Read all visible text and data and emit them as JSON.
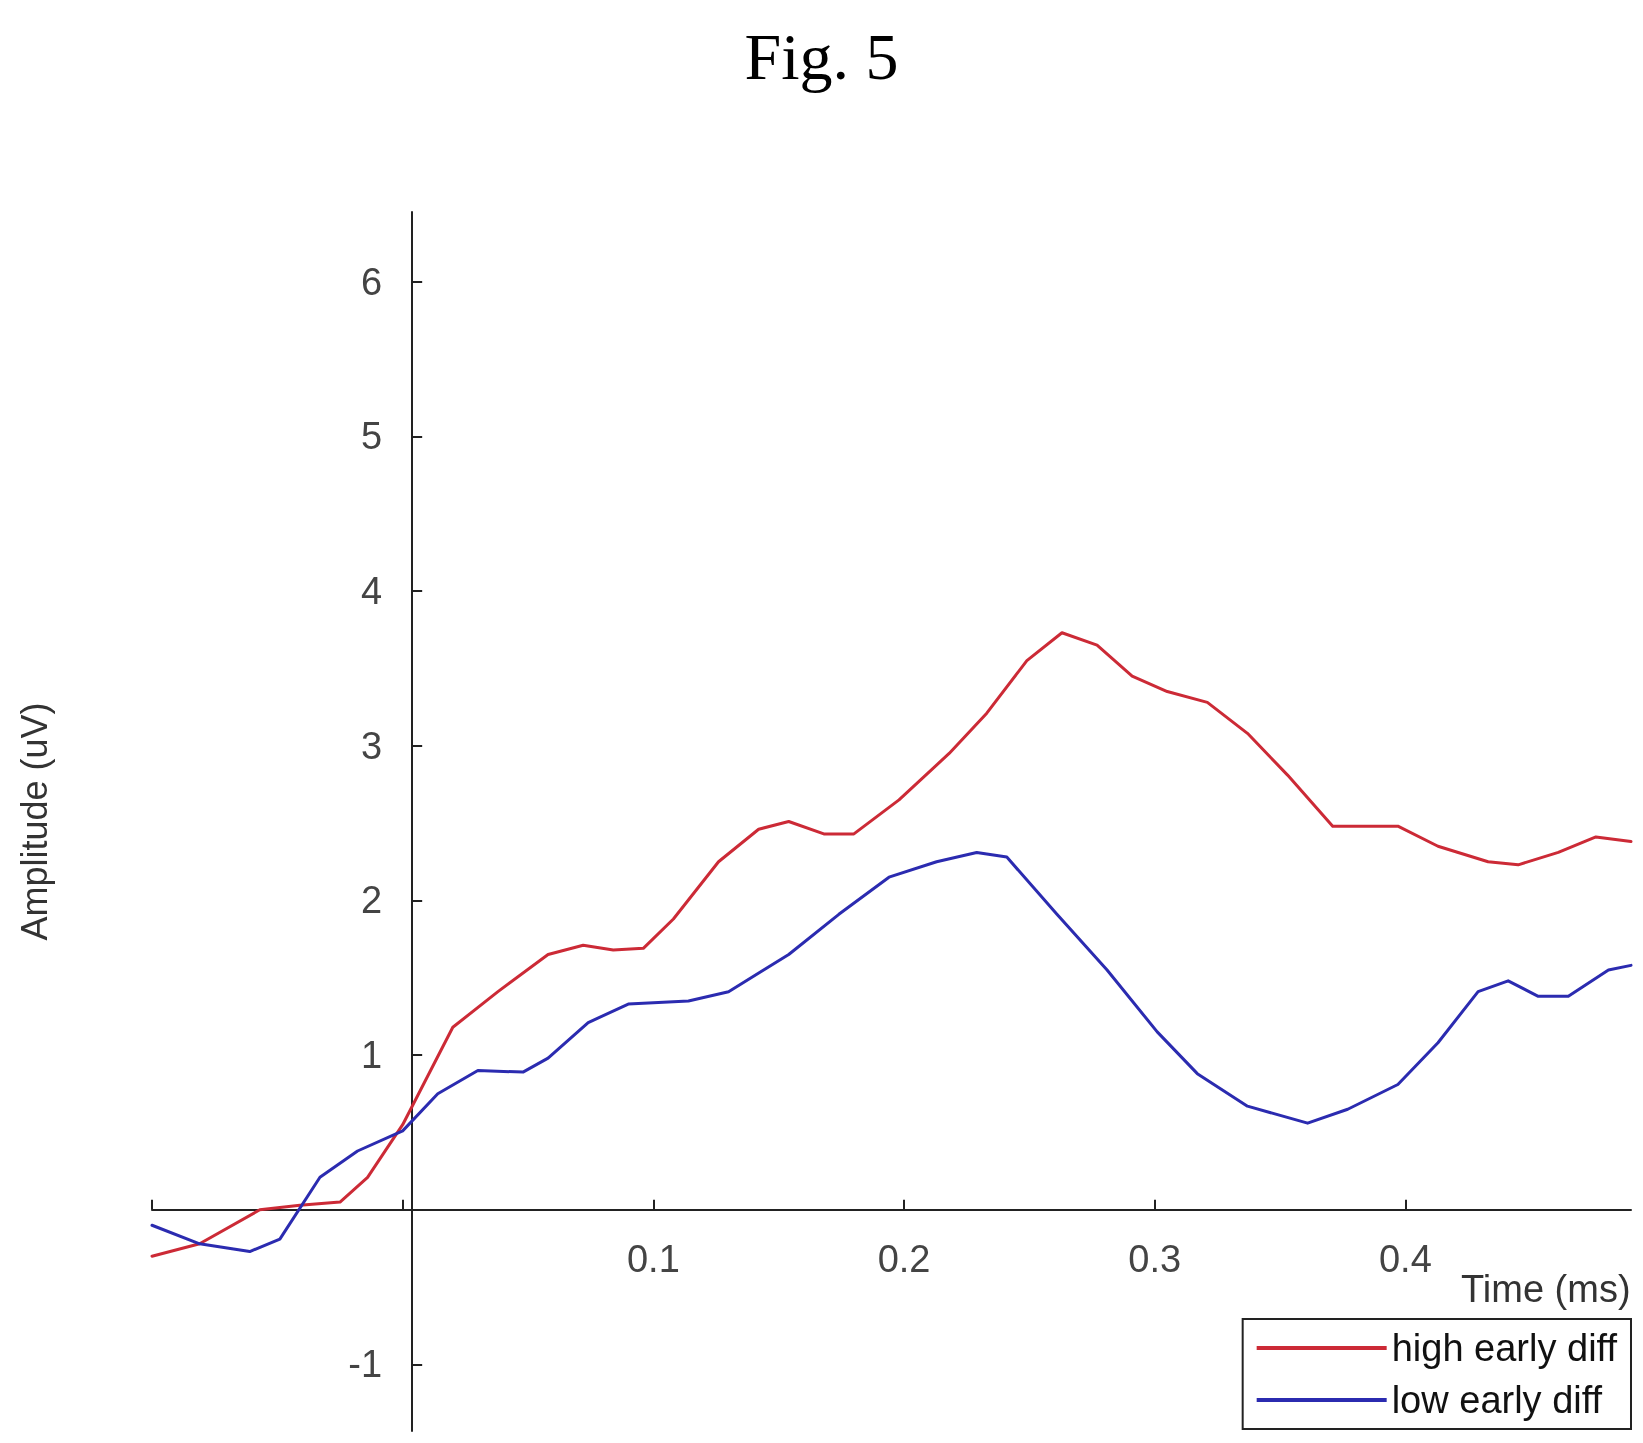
{
  "chart_data": {
    "type": "line",
    "title": "Fig. 5",
    "xlabel": "Time (ms)",
    "ylabel": "Amplitude (uV)",
    "xlim": [
      -0.1,
      0.49
    ],
    "xticks": [
      {
        "value": -0.1,
        "label": null
      },
      {
        "value": 0,
        "label": null
      },
      0.1,
      0.2,
      0.3,
      0.4
    ],
    "ylim": [
      -1.43,
      6.45
    ],
    "yticks": [
      -1,
      {
        "value": 0,
        "label": null
      },
      1,
      2,
      3,
      4,
      5,
      6
    ],
    "legend": "bottom right",
    "marker": "none",
    "line_style": "solid",
    "series": [
      {
        "name": "high early diff",
        "color": "#cc2a36",
        "x": [
          -0.1,
          -0.081,
          -0.057,
          -0.041,
          -0.025,
          -0.014,
          0,
          0.02,
          0.038,
          0.058,
          0.072,
          0.084,
          0.096,
          0.108,
          0.126,
          0.142,
          0.154,
          0.168,
          0.18,
          0.198,
          0.218,
          0.233,
          0.249,
          0.263,
          0.277,
          0.291,
          0.305,
          0.321,
          0.337,
          0.353,
          0.371,
          0.385,
          0.397,
          0.413,
          0.433,
          0.445,
          0.461,
          0.476,
          0.49
        ],
        "values": [
          -0.3,
          -0.22,
          0.0,
          0.03,
          0.05,
          0.21,
          0.55,
          1.18,
          1.41,
          1.65,
          1.71,
          1.68,
          1.69,
          1.88,
          2.25,
          2.46,
          2.51,
          2.43,
          2.43,
          2.65,
          2.95,
          3.21,
          3.55,
          3.73,
          3.65,
          3.45,
          3.35,
          3.28,
          3.08,
          2.81,
          2.48,
          2.48,
          2.48,
          2.35,
          2.25,
          2.23,
          2.31,
          2.41,
          2.38
        ]
      },
      {
        "name": "low early diff",
        "color": "#2b2bb0",
        "x": [
          -0.1,
          -0.081,
          -0.061,
          -0.049,
          -0.033,
          -0.018,
          0,
          0.014,
          0.03,
          0.048,
          0.058,
          0.074,
          0.09,
          0.114,
          0.13,
          0.154,
          0.174,
          0.194,
          0.213,
          0.229,
          0.241,
          0.261,
          0.281,
          0.301,
          0.317,
          0.337,
          0.361,
          0.377,
          0.397,
          0.413,
          0.429,
          0.441,
          0.453,
          0.465,
          0.481,
          0.49
        ],
        "values": [
          -0.1,
          -0.22,
          -0.27,
          -0.19,
          0.21,
          0.38,
          0.51,
          0.75,
          0.9,
          0.89,
          0.98,
          1.21,
          1.33,
          1.35,
          1.41,
          1.65,
          1.91,
          2.15,
          2.25,
          2.31,
          2.28,
          1.91,
          1.55,
          1.15,
          0.88,
          0.67,
          0.56,
          0.65,
          0.81,
          1.08,
          1.41,
          1.48,
          1.38,
          1.38,
          1.55,
          1.58
        ]
      }
    ]
  }
}
